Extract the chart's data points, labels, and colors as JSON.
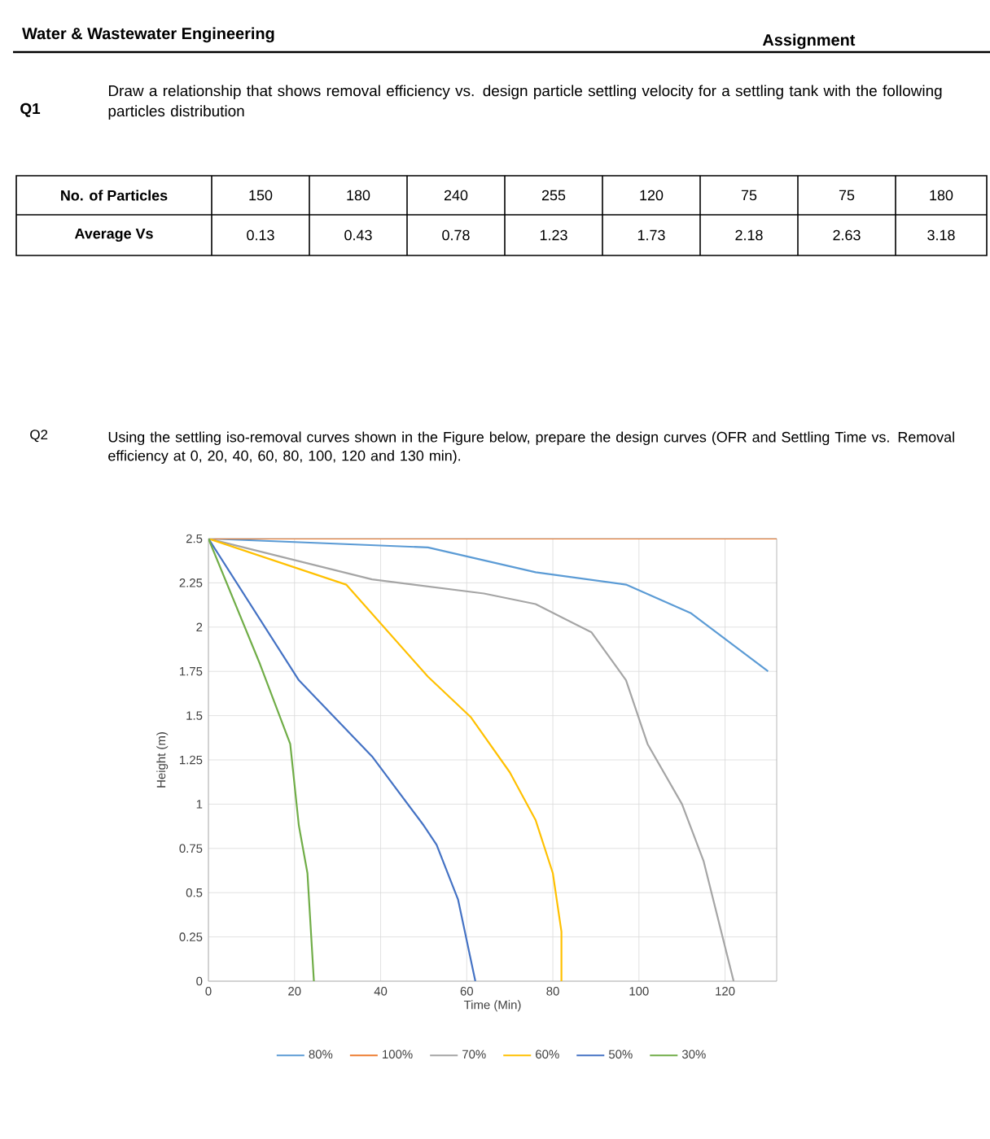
{
  "chart_data": [
    {
      "type": "other",
      "title": "Water & Wastewater Engineering",
      "annotations": [
        "Assignment",
        "Q1",
        "Draw a relationship that shows removal efficiency vs. design particle settling velocity for a settling tank with the following particles distribution",
        "No. of Particles",
        "150",
        "180",
        "240",
        "255",
        "120",
        "75",
        "75",
        "180",
        "Average Vs",
        "0.13",
        "0.43",
        "0.78",
        "1.23",
        "1.73",
        "2.18",
        "2.63",
        "3.18",
        "Q2",
        "Using the settling iso-removal curves shown in the Figure below, prepare the design curves (OFR and Settling Time vs. Removal efficiency at 0, 20, 40, 60, 80, 100, 120 and 130 min)."
      ]
    },
    {
      "type": "line",
      "xlabel": "Time (Min)",
      "ylabel": "Height (m)",
      "xlim": [
        0,
        132
      ],
      "xticks": [
        0,
        20,
        40,
        60,
        80,
        100,
        120
      ],
      "ylim": [
        0,
        2.5
      ],
      "yticks": [
        0,
        0.25,
        0.5,
        0.75,
        1,
        1.25,
        1.5,
        1.75,
        2,
        2.25,
        2.5
      ],
      "grid": true,
      "legend": "bottom",
      "marker": "none",
      "line_style": "solid",
      "series": [
        {
          "name": "80%",
          "color": "#5b9bd5",
          "x": [
            0,
            51,
            76,
            97,
            112,
            130
          ],
          "values": [
            2.5,
            2.45,
            2.31,
            2.24,
            2.08,
            1.75
          ]
        },
        {
          "name": "100%",
          "color": "#ed7d31",
          "x": [
            0,
            132
          ],
          "values": [
            2.5,
            2.5
          ]
        },
        {
          "name": "70%",
          "color": "#a5a5a5",
          "x": [
            0,
            38,
            64,
            76,
            89,
            97,
            102,
            110,
            115,
            122
          ],
          "values": [
            2.5,
            2.27,
            2.19,
            2.13,
            1.97,
            1.7,
            1.34,
            1.0,
            0.68,
            0
          ]
        },
        {
          "name": "60%",
          "color": "#ffc000",
          "x": [
            0,
            32,
            51,
            61,
            70,
            76,
            80,
            82,
            82
          ],
          "values": [
            2.5,
            2.24,
            1.72,
            1.49,
            1.18,
            0.91,
            0.61,
            0.28,
            0
          ]
        },
        {
          "name": "50%",
          "color": "#4472c4",
          "x": [
            0,
            21,
            38,
            50,
            53,
            58,
            62
          ],
          "values": [
            2.5,
            1.7,
            1.27,
            0.88,
            0.77,
            0.46,
            0
          ]
        },
        {
          "name": "30%",
          "color": "#70ad47",
          "x": [
            0,
            12,
            19,
            21,
            23,
            24.5
          ],
          "values": [
            2.5,
            1.79,
            1.34,
            0.88,
            0.61,
            0
          ]
        }
      ]
    }
  ]
}
